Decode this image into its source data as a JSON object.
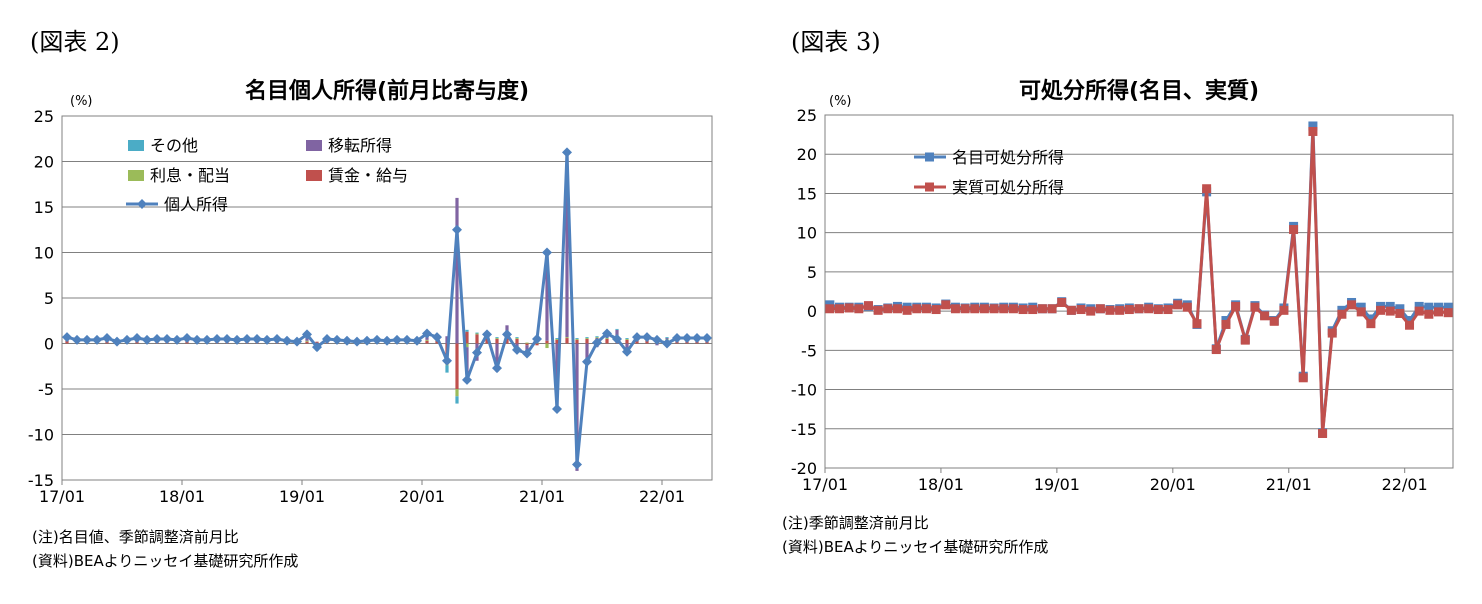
{
  "charts": [
    {
      "fig_label": "(図表 2)",
      "notes": [
        "(注)名目値、季節調整済前月比",
        "(資料)BEAよりニッセイ基礎研究所作成"
      ],
      "chart_data": {
        "type": "bar",
        "title": "名目個人所得(前月比寄与度)",
        "ylabel": "(%)",
        "ylim": [
          -15,
          25
        ],
        "yticks": [
          25,
          20,
          15,
          10,
          5,
          0,
          -5,
          -10,
          -15
        ],
        "x_tick_labels": [
          "17/01",
          "18/01",
          "19/01",
          "20/01",
          "21/01",
          "22/01"
        ],
        "grid": true,
        "legend": {
          "items": [
            {
              "name": "その他",
              "type": "bar",
              "color": "#4bacc6"
            },
            {
              "name": "移転所得",
              "type": "bar",
              "color": "#8064a2"
            },
            {
              "name": "利息・配当",
              "type": "bar",
              "color": "#9bbb59"
            },
            {
              "name": "賃金・給与",
              "type": "bar",
              "color": "#c0504d"
            },
            {
              "name": "個人所得",
              "type": "line",
              "color": "#4f81bd"
            }
          ]
        },
        "x": [
          "17/01",
          "17/02",
          "17/03",
          "17/04",
          "17/05",
          "17/06",
          "17/07",
          "17/08",
          "17/09",
          "17/10",
          "17/11",
          "17/12",
          "18/01",
          "18/02",
          "18/03",
          "18/04",
          "18/05",
          "18/06",
          "18/07",
          "18/08",
          "18/09",
          "18/10",
          "18/11",
          "18/12",
          "19/01",
          "19/02",
          "19/03",
          "19/04",
          "19/05",
          "19/06",
          "19/07",
          "19/08",
          "19/09",
          "19/10",
          "19/11",
          "19/12",
          "20/01",
          "20/02",
          "20/03",
          "20/04",
          "20/05",
          "20/06",
          "20/07",
          "20/08",
          "20/09",
          "20/10",
          "20/11",
          "20/12",
          "21/01",
          "21/02",
          "21/03",
          "21/04",
          "21/05",
          "21/06",
          "21/07",
          "21/08",
          "21/09",
          "21/10",
          "21/11",
          "21/12",
          "22/01",
          "22/02",
          "22/03",
          "22/04",
          "22/05"
        ],
        "series": [
          {
            "name": "賃金・給与",
            "type": "bar",
            "color": "#c0504d",
            "values": [
              0.3,
              0.2,
              0.2,
              0.2,
              0.3,
              0.2,
              0.3,
              0.3,
              0.2,
              0.3,
              0.3,
              0.2,
              0.3,
              0.3,
              0.2,
              0.3,
              0.3,
              0.3,
              0.3,
              0.3,
              0.2,
              0.3,
              0.2,
              0.1,
              0.2,
              0.2,
              0.3,
              0.2,
              0.2,
              0.2,
              0.2,
              0.3,
              0.2,
              0.2,
              0.3,
              0.2,
              0.3,
              0.3,
              -1.8,
              -5.0,
              1.3,
              1.0,
              0.8,
              0.5,
              0.7,
              0.5,
              -0.2,
              -0.2,
              0.3,
              0.4,
              0.6,
              0.4,
              0.5,
              0.6,
              0.5,
              0.6,
              0.4,
              0.5,
              0.5,
              0.4,
              0.4,
              0.4,
              0.4,
              0.3,
              0.3
            ]
          },
          {
            "name": "利息・配当",
            "type": "bar",
            "color": "#9bbb59",
            "values": [
              0.1,
              0.1,
              0.1,
              0.1,
              0.1,
              0.1,
              0.1,
              0.1,
              0.1,
              0.1,
              0.1,
              0.1,
              0.1,
              0.1,
              0.1,
              0.1,
              0.1,
              0.1,
              0.1,
              0.1,
              0.1,
              0.1,
              0.1,
              0.1,
              0.1,
              -0.1,
              0.1,
              0.1,
              0.0,
              0.0,
              0.0,
              0.0,
              0.0,
              0.1,
              0.0,
              0.0,
              0.1,
              0.1,
              -0.6,
              -0.8,
              -0.4,
              0.1,
              0.1,
              0.1,
              0.1,
              0.1,
              0.1,
              0.1,
              -0.5,
              0.1,
              0.1,
              0.1,
              0.1,
              0.1,
              0.1,
              0.1,
              0.1,
              0.1,
              0.1,
              0.1,
              0.1,
              0.1,
              0.1,
              0.1,
              0.1
            ]
          },
          {
            "name": "移転所得",
            "type": "bar",
            "color": "#8064a2",
            "values": [
              0.2,
              0.1,
              0.1,
              0.1,
              0.2,
              0.0,
              0.1,
              0.2,
              0.1,
              0.1,
              0.1,
              0.1,
              0.2,
              0.1,
              0.1,
              0.1,
              0.1,
              0.1,
              0.1,
              0.1,
              0.1,
              0.1,
              0.1,
              0.1,
              0.6,
              -0.2,
              0.1,
              0.1,
              0.1,
              0.0,
              0.1,
              0.1,
              0.1,
              0.1,
              0.1,
              0.1,
              0.6,
              0.3,
              0.8,
              16.0,
              -3.0,
              -1.9,
              0.2,
              -3.1,
              1.2,
              -0.7,
              -0.6,
              0.6,
              9.8,
              -7.1,
              20.5,
              -14.0,
              -2.3,
              -0.4,
              0.3,
              0.8,
              -0.9,
              0.1,
              0.2,
              -0.2,
              0.1,
              0.1,
              0.1,
              0.1,
              0.1
            ]
          },
          {
            "name": "その他",
            "type": "bar",
            "color": "#4bacc6",
            "values": [
              0.1,
              0.0,
              0.0,
              0.0,
              0.1,
              0.0,
              0.0,
              0.1,
              0.0,
              0.0,
              0.1,
              0.0,
              0.1,
              0.0,
              0.0,
              0.0,
              0.1,
              0.0,
              0.0,
              0.0,
              0.0,
              0.1,
              0.0,
              0.0,
              0.1,
              -0.5,
              0.0,
              0.0,
              0.0,
              0.0,
              0.0,
              0.0,
              0.0,
              0.0,
              0.0,
              0.0,
              0.1,
              0.1,
              -0.8,
              -0.8,
              0.2,
              0.1,
              0.0,
              0.1,
              0.0,
              0.1,
              0.0,
              0.1,
              0.2,
              0.1,
              0.1,
              0.1,
              0.1,
              0.1,
              0.1,
              0.1,
              0.1,
              0.1,
              0.1,
              0.1,
              0.1,
              0.1,
              0.1,
              0.1,
              0.1
            ]
          },
          {
            "name": "個人所得",
            "type": "line",
            "color": "#4f81bd",
            "values": [
              0.7,
              0.4,
              0.4,
              0.4,
              0.6,
              0.2,
              0.4,
              0.6,
              0.4,
              0.5,
              0.5,
              0.4,
              0.6,
              0.4,
              0.4,
              0.5,
              0.5,
              0.4,
              0.5,
              0.5,
              0.4,
              0.5,
              0.3,
              0.2,
              1.0,
              -0.4,
              0.5,
              0.4,
              0.3,
              0.2,
              0.3,
              0.4,
              0.3,
              0.4,
              0.4,
              0.3,
              1.1,
              0.7,
              -1.9,
              12.5,
              -4.0,
              -1.0,
              1.0,
              -2.7,
              1.0,
              -0.7,
              -1.1,
              0.5,
              10.0,
              -7.2,
              21.0,
              -13.3,
              -2.0,
              0.1,
              1.1,
              0.5,
              -0.9,
              0.7,
              0.7,
              0.4,
              0.0,
              0.6,
              0.6,
              0.6,
              0.6
            ]
          }
        ]
      }
    },
    {
      "fig_label": "(図表 3)",
      "notes": [
        "(注)季節調整済前月比",
        "(資料)BEAよりニッセイ基礎研究所作成"
      ],
      "chart_data": {
        "type": "line",
        "title": "可処分所得(名目、実質)",
        "ylabel": "(%)",
        "ylim": [
          -20,
          25
        ],
        "yticks": [
          25,
          20,
          15,
          10,
          5,
          0,
          -5,
          -10,
          -15,
          -20
        ],
        "x_tick_labels": [
          "17/01",
          "18/01",
          "19/01",
          "20/01",
          "21/01",
          "22/01"
        ],
        "grid": true,
        "legend": {
          "items": [
            {
              "name": "名目可処分所得",
              "type": "line",
              "color": "#4f81bd"
            },
            {
              "name": "実質可処分所得",
              "type": "line",
              "color": "#c0504d"
            }
          ]
        },
        "x": [
          "17/01",
          "17/02",
          "17/03",
          "17/04",
          "17/05",
          "17/06",
          "17/07",
          "17/08",
          "17/09",
          "17/10",
          "17/11",
          "17/12",
          "18/01",
          "18/02",
          "18/03",
          "18/04",
          "18/05",
          "18/06",
          "18/07",
          "18/08",
          "18/09",
          "18/10",
          "18/11",
          "18/12",
          "19/01",
          "19/02",
          "19/03",
          "19/04",
          "19/05",
          "19/06",
          "19/07",
          "19/08",
          "19/09",
          "19/10",
          "19/11",
          "19/12",
          "20/01",
          "20/02",
          "20/03",
          "20/04",
          "20/05",
          "20/06",
          "20/07",
          "20/08",
          "20/09",
          "20/10",
          "20/11",
          "20/12",
          "21/01",
          "21/02",
          "21/03",
          "21/04",
          "21/05",
          "21/06",
          "21/07",
          "21/08",
          "21/09",
          "21/10",
          "21/11",
          "21/12",
          "22/01",
          "22/02",
          "22/03",
          "22/04",
          "22/05"
        ],
        "series": [
          {
            "name": "名目可処分所得",
            "type": "line",
            "color": "#4f81bd",
            "values": [
              0.8,
              0.5,
              0.5,
              0.5,
              0.6,
              0.2,
              0.4,
              0.6,
              0.5,
              0.5,
              0.5,
              0.4,
              0.9,
              0.5,
              0.4,
              0.5,
              0.5,
              0.4,
              0.5,
              0.5,
              0.4,
              0.5,
              0.3,
              0.3,
              1.2,
              0.1,
              0.4,
              0.3,
              0.3,
              0.2,
              0.3,
              0.4,
              0.3,
              0.5,
              0.3,
              0.4,
              1.0,
              0.8,
              -1.7,
              15.2,
              -4.8,
              -1.2,
              0.8,
              -3.6,
              0.7,
              -0.5,
              -1.2,
              0.4,
              10.8,
              -8.3,
              23.6,
              -15.5,
              -2.5,
              0.1,
              1.1,
              0.5,
              -1.0,
              0.6,
              0.6,
              0.3,
              -1.2,
              0.6,
              0.5,
              0.5,
              0.5
            ]
          },
          {
            "name": "実質可処分所得",
            "type": "line",
            "color": "#c0504d",
            "values": [
              0.3,
              0.3,
              0.4,
              0.3,
              0.7,
              0.1,
              0.3,
              0.3,
              0.1,
              0.3,
              0.3,
              0.2,
              0.8,
              0.3,
              0.3,
              0.3,
              0.3,
              0.3,
              0.3,
              0.3,
              0.2,
              0.2,
              0.3,
              0.3,
              1.1,
              0.1,
              0.2,
              0.0,
              0.3,
              0.1,
              0.1,
              0.2,
              0.3,
              0.3,
              0.2,
              0.2,
              0.8,
              0.5,
              -1.6,
              15.6,
              -4.9,
              -1.7,
              0.6,
              -3.7,
              0.5,
              -0.6,
              -1.3,
              0.1,
              10.4,
              -8.5,
              22.9,
              -15.6,
              -2.8,
              -0.4,
              0.8,
              -0.1,
              -1.6,
              0.1,
              0.0,
              -0.3,
              -1.8,
              0.0,
              -0.4,
              -0.1,
              -0.2
            ]
          }
        ]
      }
    }
  ]
}
